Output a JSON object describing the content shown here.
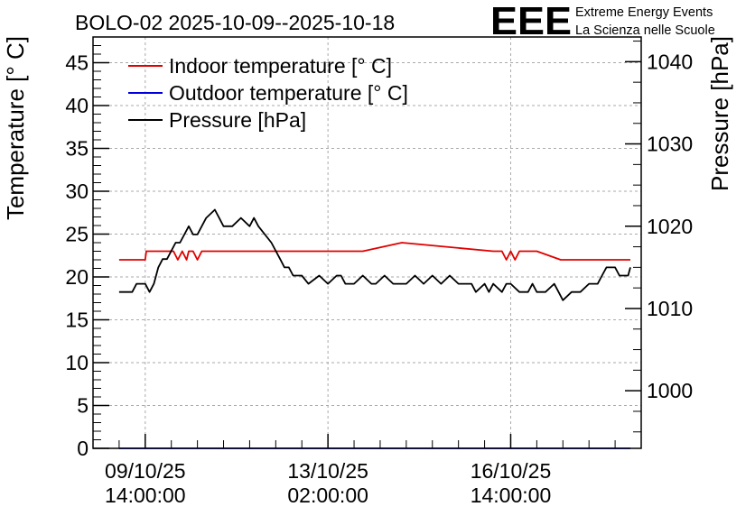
{
  "chart_data": {
    "type": "line",
    "title": "BOLO-02 2025-10-09--2025-10-18",
    "logo": {
      "text": "EEE",
      "line1": "Extreme Energy Events",
      "line2": "La Scienza nelle Scuole",
      "color": "#1a1aee"
    },
    "ylabel": "Temperature [° C]",
    "ylabel_right": "Pressure [hPa]",
    "ylim": [
      0,
      48
    ],
    "ylim_right": [
      993.0,
      1043.0
    ],
    "yticks": [
      0,
      5,
      10,
      15,
      20,
      25,
      30,
      35,
      40,
      45
    ],
    "yticks_right": [
      1000,
      1010,
      1020,
      1030,
      1040
    ],
    "x_unit": "hours since 09/10/25 14:00:00",
    "xlim": [
      -24,
      228
    ],
    "xticks": [
      {
        "x": 0,
        "line1": "09/10/25",
        "line2": "14:00:00"
      },
      {
        "x": 84,
        "line1": "13/10/25",
        "line2": "02:00:00"
      },
      {
        "x": 168,
        "line1": "16/10/25",
        "line2": "14:00:00"
      }
    ],
    "grid": true,
    "legend_position": "top-left",
    "series": [
      {
        "name": "Indoor temperature [° C]",
        "axis": "left",
        "color": "#e00000",
        "x": [
          -12,
          0,
          0.5,
          12,
          13,
          15,
          17,
          19,
          20,
          22,
          24,
          26,
          28,
          88,
          90,
          92,
          94,
          96,
          97,
          100,
          118,
          160,
          162,
          164,
          166,
          168,
          170,
          172,
          174,
          176,
          178,
          180,
          191,
          192,
          223
        ],
        "values": [
          22,
          22,
          23,
          23,
          23,
          22,
          23,
          22,
          23,
          23,
          22,
          23,
          23,
          23,
          23,
          23,
          23,
          23,
          23,
          23,
          24,
          23,
          23,
          23,
          22,
          23,
          22,
          23,
          23,
          23,
          23,
          23,
          22,
          22,
          22
        ]
      },
      {
        "name": "Outdoor temperature [° C]",
        "axis": "left",
        "color": "#0000dd",
        "x": [
          -12,
          223
        ],
        "values": [
          0,
          0
        ]
      },
      {
        "name": "Pressure [hPa]",
        "axis": "right",
        "color": "#000000",
        "x": [
          -12,
          -6,
          -4,
          0,
          2,
          4,
          6,
          8,
          10,
          12,
          14,
          16,
          20,
          22,
          24,
          26,
          28,
          32,
          34,
          36,
          40,
          44,
          48,
          50,
          52,
          58,
          62,
          64,
          66,
          68,
          70,
          72,
          75,
          80,
          84,
          88,
          90,
          92,
          96,
          100,
          104,
          106,
          110,
          114,
          116,
          120,
          124,
          128,
          132,
          136,
          140,
          144,
          148,
          150,
          152,
          156,
          158,
          160,
          164,
          166,
          168,
          172,
          176,
          178,
          180,
          184,
          188,
          190,
          192,
          196,
          200,
          204,
          206,
          208,
          210,
          212,
          214,
          216,
          218,
          220,
          222,
          223
        ],
        "values": [
          1012,
          1012,
          1013,
          1013,
          1012,
          1013,
          1015,
          1016,
          1016,
          1017,
          1018,
          1018,
          1020,
          1019,
          1019,
          1020,
          1021,
          1022,
          1021,
          1020,
          1020,
          1021,
          1020,
          1021,
          1020,
          1018,
          1016,
          1015,
          1015,
          1014,
          1014,
          1014,
          1013,
          1014,
          1013,
          1014,
          1014,
          1013,
          1013,
          1014,
          1013,
          1013,
          1014,
          1013,
          1013,
          1013,
          1014,
          1013,
          1014,
          1013,
          1014,
          1013,
          1013,
          1013,
          1012,
          1013,
          1012,
          1013,
          1012,
          1013,
          1013,
          1012,
          1012,
          1013,
          1012,
          1012,
          1013,
          1012,
          1011,
          1012,
          1012,
          1013,
          1013,
          1013,
          1014,
          1015,
          1015,
          1015,
          1014,
          1014,
          1014,
          1015
        ]
      }
    ]
  }
}
